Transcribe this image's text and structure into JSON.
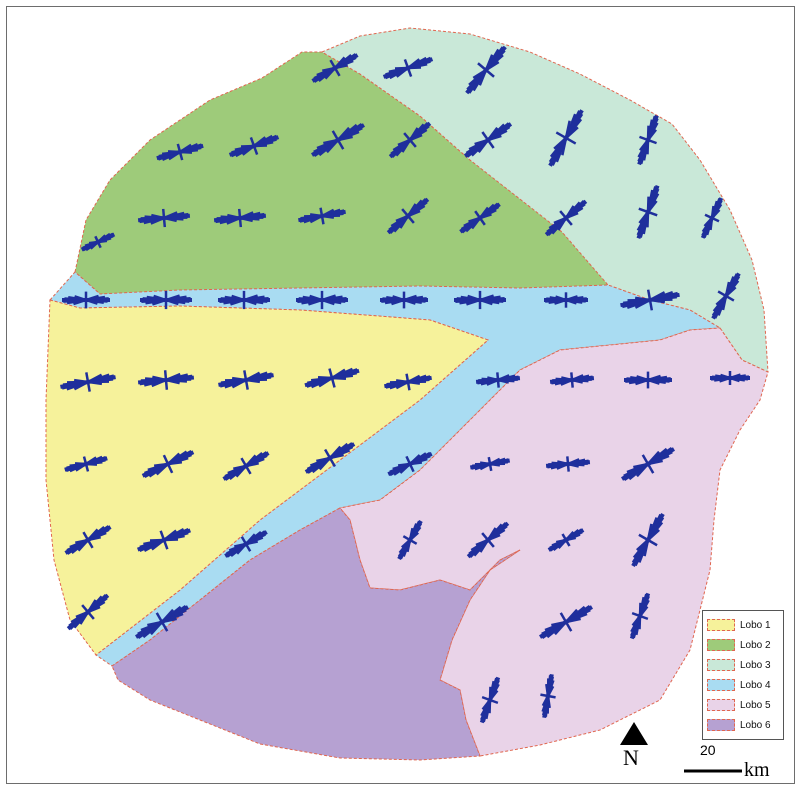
{
  "map": {
    "lobes": [
      {
        "name": "Lobo 1",
        "color": "#f6f29b"
      },
      {
        "name": "Lobo 2",
        "color": "#9ecb7a"
      },
      {
        "name": "Lobo 3",
        "color": "#c9e8d8"
      },
      {
        "name": "Lobo 4",
        "color": "#a9dcf2"
      },
      {
        "name": "Lobo 5",
        "color": "#e9d3e8"
      },
      {
        "name": "Lobo 6",
        "color": "#b6a1d2"
      }
    ],
    "boundary_color": "#e0664f",
    "rose_color": "#1f2f9c"
  },
  "legend": {
    "items": [
      "Lobo 1",
      "Lobo 2",
      "Lobo 3",
      "Lobo 4",
      "Lobo 5",
      "Lobo 6"
    ]
  },
  "north_arrow": {
    "label": "N"
  },
  "scale_bar": {
    "value": "20",
    "unit": "km"
  }
}
